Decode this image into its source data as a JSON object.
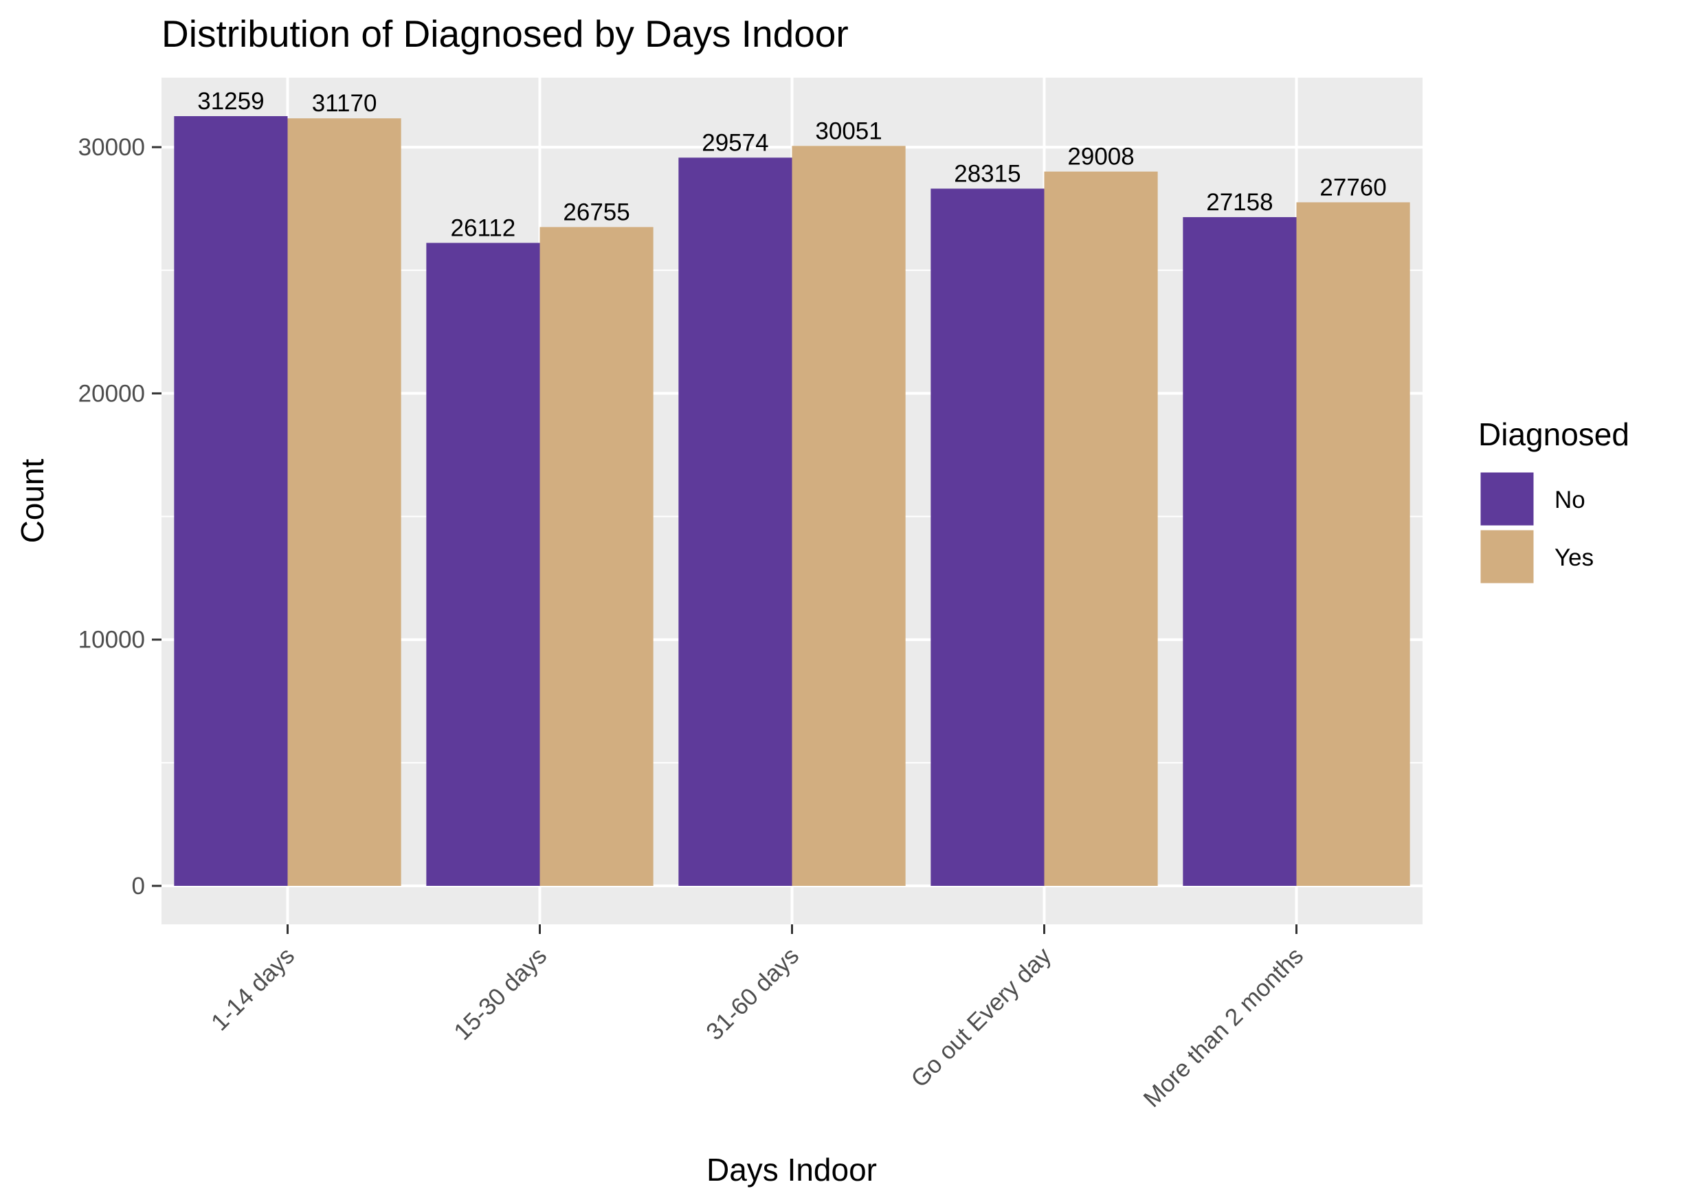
{
  "chart_data": {
    "type": "bar",
    "title": "Distribution of Diagnosed by Days Indoor",
    "xlabel": "Days Indoor",
    "ylabel": "Count",
    "categories": [
      "1-14 days",
      "15-30 days",
      "31-60 days",
      "Go out Every day",
      "More than 2 months"
    ],
    "series": [
      {
        "name": "No",
        "color": "#5e3a9a",
        "values": [
          31259,
          26112,
          29574,
          28315,
          27158
        ]
      },
      {
        "name": "Yes",
        "color": "#d2ae80",
        "values": [
          31170,
          26755,
          30051,
          29008,
          27760
        ]
      }
    ],
    "yticks": [
      0,
      10000,
      20000,
      30000
    ],
    "ytick_labels": [
      "0",
      "10000",
      "20000",
      "30000"
    ],
    "ylim": [
      -1563,
      32822
    ],
    "grid": true,
    "panel_color": "#ebebeb",
    "legend": {
      "title": "Diagnosed",
      "position": "right",
      "labels": [
        "No",
        "Yes"
      ]
    }
  }
}
